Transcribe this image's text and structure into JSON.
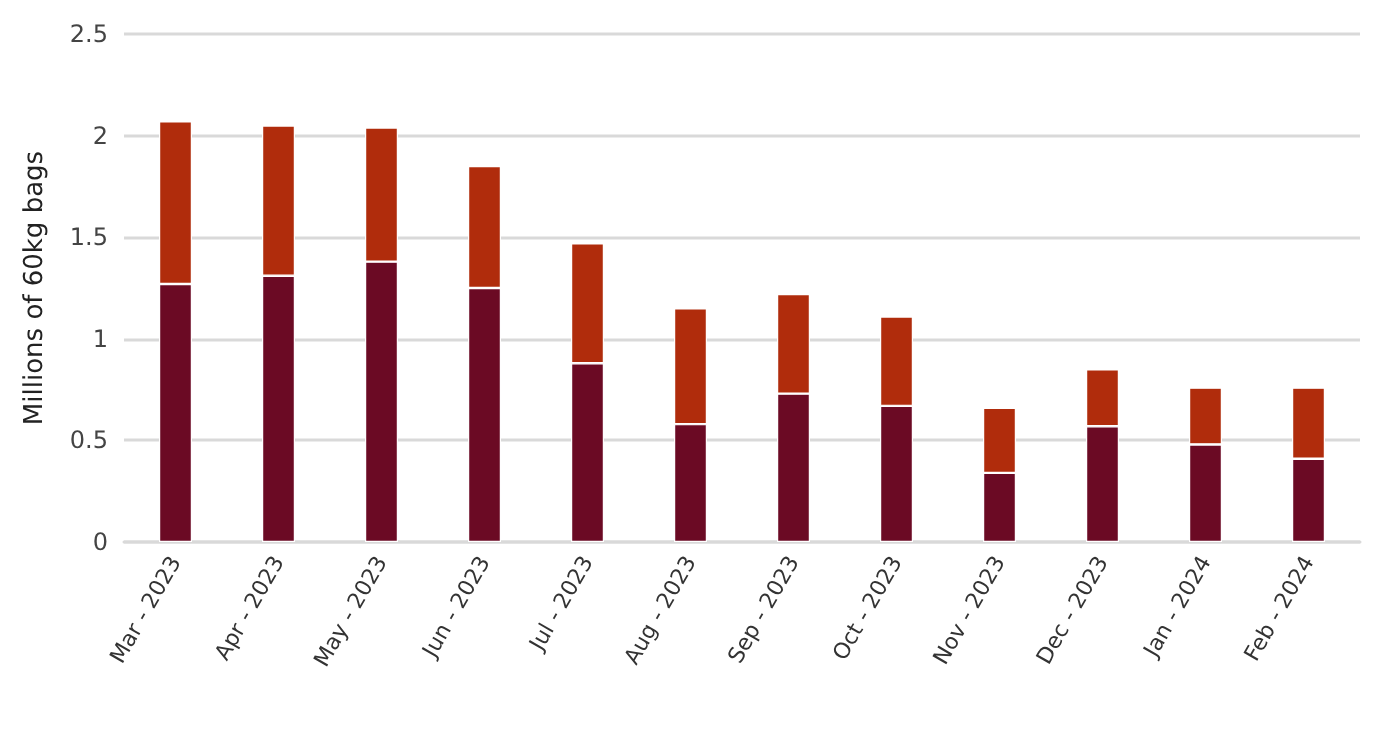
{
  "chart_data": {
    "type": "bar",
    "ylabel": "Millions of 60kg bags",
    "stacked": true,
    "grid": "y",
    "categories": [
      "Mar - 2023",
      "Apr - 2023",
      "May - 2023",
      "Jun - 2023",
      "Jul - 2023",
      "Aug - 2023",
      "Sep - 2023",
      "Oct - 2023",
      "Nov - 2023",
      "Dec - 2023",
      "Jan - 2024",
      "Feb - 2024"
    ],
    "ylim": [
      0,
      2.5
    ],
    "yticks": [
      0,
      0.5,
      1,
      1.5,
      2,
      2.5
    ],
    "series": [
      {
        "color": "#6b0a24",
        "values": [
          1.27,
          1.31,
          1.38,
          1.25,
          0.88,
          0.58,
          0.73,
          0.67,
          0.34,
          0.57,
          0.48,
          0.41
        ]
      },
      {
        "color": "#b02c0c",
        "values": [
          0.8,
          0.74,
          0.66,
          0.6,
          0.59,
          0.57,
          0.49,
          0.44,
          0.32,
          0.28,
          0.28,
          0.35
        ]
      }
    ]
  }
}
